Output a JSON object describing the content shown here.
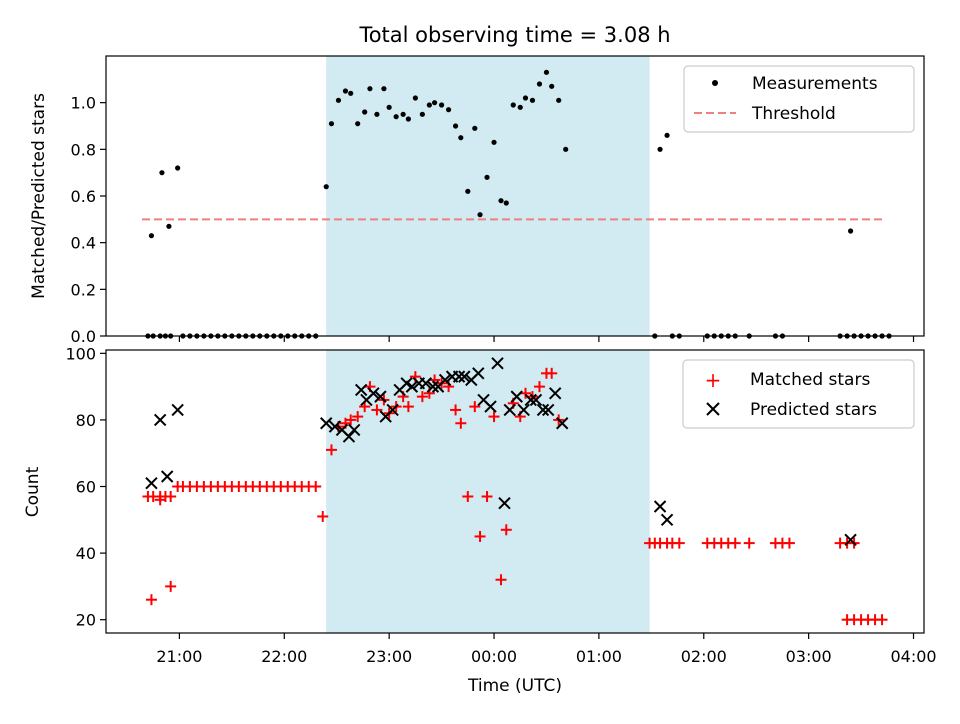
{
  "figure_title": "Total observing time = 3.08 h",
  "colors": {
    "shade": "#add8e6",
    "measurement": "#000000",
    "threshold": "#f08080",
    "matched": "#ff0000",
    "predicted": "#000000"
  },
  "chart_data": [
    {
      "type": "scatter",
      "title": "Total observing time = 3.08 h",
      "xlabel": "",
      "ylabel": "Matched/Predicted stars",
      "xlim": [
        "20:18",
        "04:06"
      ],
      "ylim": [
        0,
        1.2
      ],
      "yticks": [
        "0.0",
        "0.2",
        "0.4",
        "0.6",
        "0.8",
        "1.0"
      ],
      "shaded_interval": [
        "22:24",
        "01:29"
      ],
      "legend_position": "top-right",
      "legend": [
        "Measurements",
        "Threshold"
      ],
      "series": [
        {
          "name": "Measurements",
          "marker": "dot",
          "points": [
            [
              "20:42",
              0
            ],
            [
              "20:45",
              0
            ],
            [
              "20:49",
              0
            ],
            [
              "20:52",
              0
            ],
            [
              "20:55",
              0
            ],
            [
              "20:44",
              0.43
            ],
            [
              "20:50",
              0.7
            ],
            [
              "20:54",
              0.47
            ],
            [
              "20:59",
              0.72
            ],
            [
              "21:02",
              0
            ],
            [
              "21:06",
              0
            ],
            [
              "21:10",
              0
            ],
            [
              "21:14",
              0
            ],
            [
              "21:18",
              0
            ],
            [
              "21:22",
              0
            ],
            [
              "21:26",
              0
            ],
            [
              "21:30",
              0
            ],
            [
              "21:34",
              0
            ],
            [
              "21:38",
              0
            ],
            [
              "21:42",
              0
            ],
            [
              "21:46",
              0
            ],
            [
              "21:50",
              0
            ],
            [
              "21:54",
              0
            ],
            [
              "21:58",
              0
            ],
            [
              "22:02",
              0
            ],
            [
              "22:06",
              0
            ],
            [
              "22:10",
              0
            ],
            [
              "22:14",
              0
            ],
            [
              "22:18",
              0
            ],
            [
              "22:24",
              0.64
            ],
            [
              "22:27",
              0.91
            ],
            [
              "22:31",
              1.01
            ],
            [
              "22:35",
              1.05
            ],
            [
              "22:38",
              1.04
            ],
            [
              "22:42",
              0.91
            ],
            [
              "22:46",
              0.96
            ],
            [
              "22:49",
              1.06
            ],
            [
              "22:53",
              0.95
            ],
            [
              "22:57",
              1.06
            ],
            [
              "23:00",
              0.98
            ],
            [
              "23:04",
              0.94
            ],
            [
              "23:08",
              0.95
            ],
            [
              "23:11",
              0.93
            ],
            [
              "23:15",
              1.02
            ],
            [
              "23:19",
              0.95
            ],
            [
              "23:23",
              0.99
            ],
            [
              "23:26",
              1.0
            ],
            [
              "23:30",
              0.99
            ],
            [
              "23:34",
              0.97
            ],
            [
              "23:38",
              0.9
            ],
            [
              "23:41",
              0.85
            ],
            [
              "23:45",
              0.62
            ],
            [
              "23:49",
              0.89
            ],
            [
              "23:52",
              0.52
            ],
            [
              "23:56",
              0.68
            ],
            [
              "00:00",
              0.83
            ],
            [
              "00:04",
              0.58
            ],
            [
              "00:07",
              0.57
            ],
            [
              "00:11",
              0.99
            ],
            [
              "00:15",
              0.98
            ],
            [
              "00:18",
              1.02
            ],
            [
              "00:22",
              1.01
            ],
            [
              "00:26",
              1.08
            ],
            [
              "00:30",
              1.13
            ],
            [
              "00:33",
              1.07
            ],
            [
              "00:37",
              1.01
            ],
            [
              "00:41",
              0.8
            ],
            [
              "01:32",
              0
            ],
            [
              "01:42",
              0
            ],
            [
              "01:46",
              0
            ],
            [
              "02:02",
              0
            ],
            [
              "02:06",
              0
            ],
            [
              "02:10",
              0
            ],
            [
              "02:14",
              0
            ],
            [
              "02:18",
              0
            ],
            [
              "02:26",
              0
            ],
            [
              "02:41",
              0
            ],
            [
              "02:45",
              0
            ],
            [
              "03:18",
              0
            ],
            [
              "03:22",
              0
            ],
            [
              "03:26",
              0
            ],
            [
              "03:30",
              0
            ],
            [
              "03:34",
              0
            ],
            [
              "03:38",
              0
            ],
            [
              "03:42",
              0
            ],
            [
              "03:46",
              0
            ],
            [
              "01:35",
              0.8
            ],
            [
              "01:39",
              0.86
            ],
            [
              "03:24",
              0.45
            ]
          ]
        },
        {
          "name": "Threshold",
          "style": "dashed",
          "points": [
            [
              "20:42",
              0.5
            ],
            [
              "04:06",
              0.5
            ]
          ]
        }
      ]
    },
    {
      "type": "scatter",
      "title": "",
      "xlabel": "Time (UTC)",
      "ylabel": "Count",
      "xticks": [
        "21:00",
        "22:00",
        "23:00",
        "00:00",
        "01:00",
        "02:00",
        "03:00",
        "04:00"
      ],
      "yticks": [
        "20",
        "40",
        "60",
        "80",
        "100"
      ],
      "ylim": [
        16,
        101
      ],
      "shaded_interval": [
        "22:24",
        "01:29"
      ],
      "legend_position": "top-right",
      "legend": [
        "Matched stars",
        "Predicted stars"
      ],
      "series": [
        {
          "name": "Matched stars",
          "marker": "plus",
          "points": [
            [
              "20:42",
              57
            ],
            [
              "20:45",
              57
            ],
            [
              "20:49",
              57
            ],
            [
              "20:52",
              57
            ],
            [
              "20:55",
              57
            ],
            [
              "20:44",
              26
            ],
            [
              "20:49",
              56
            ],
            [
              "20:55",
              30
            ],
            [
              "20:59",
              60
            ],
            [
              "21:02",
              60
            ],
            [
              "21:06",
              60
            ],
            [
              "21:10",
              60
            ],
            [
              "21:14",
              60
            ],
            [
              "21:18",
              60
            ],
            [
              "21:22",
              60
            ],
            [
              "21:26",
              60
            ],
            [
              "21:30",
              60
            ],
            [
              "21:34",
              60
            ],
            [
              "21:38",
              60
            ],
            [
              "21:42",
              60
            ],
            [
              "21:46",
              60
            ],
            [
              "21:50",
              60
            ],
            [
              "21:54",
              60
            ],
            [
              "21:58",
              60
            ],
            [
              "22:02",
              60
            ],
            [
              "22:06",
              60
            ],
            [
              "22:10",
              60
            ],
            [
              "22:14",
              60
            ],
            [
              "22:18",
              60
            ],
            [
              "22:22",
              51
            ],
            [
              "22:27",
              71
            ],
            [
              "22:31",
              78
            ],
            [
              "22:35",
              79
            ],
            [
              "22:38",
              80
            ],
            [
              "22:42",
              81
            ],
            [
              "22:46",
              84
            ],
            [
              "22:49",
              90
            ],
            [
              "22:53",
              83
            ],
            [
              "22:57",
              86
            ],
            [
              "23:00",
              82
            ],
            [
              "23:04",
              84
            ],
            [
              "23:08",
              87
            ],
            [
              "23:11",
              84
            ],
            [
              "23:15",
              93
            ],
            [
              "23:19",
              87
            ],
            [
              "23:23",
              88
            ],
            [
              "23:26",
              92
            ],
            [
              "23:30",
              91
            ],
            [
              "23:34",
              90
            ],
            [
              "23:38",
              83
            ],
            [
              "23:41",
              79
            ],
            [
              "23:45",
              57
            ],
            [
              "23:49",
              84
            ],
            [
              "23:52",
              45
            ],
            [
              "23:56",
              57
            ],
            [
              "00:00",
              81
            ],
            [
              "00:04",
              32
            ],
            [
              "00:07",
              47
            ],
            [
              "00:11",
              85
            ],
            [
              "00:15",
              81
            ],
            [
              "00:18",
              88
            ],
            [
              "00:22",
              87
            ],
            [
              "00:26",
              90
            ],
            [
              "00:30",
              94
            ],
            [
              "00:33",
              94
            ],
            [
              "00:37",
              80
            ],
            [
              "01:29",
              43
            ],
            [
              "01:32",
              43
            ],
            [
              "01:35",
              43
            ],
            [
              "01:39",
              43
            ],
            [
              "01:42",
              43
            ],
            [
              "01:46",
              43
            ],
            [
              "02:02",
              43
            ],
            [
              "02:06",
              43
            ],
            [
              "02:10",
              43
            ],
            [
              "02:14",
              43
            ],
            [
              "02:18",
              43
            ],
            [
              "02:26",
              43
            ],
            [
              "02:41",
              43
            ],
            [
              "02:45",
              43
            ],
            [
              "02:49",
              43
            ],
            [
              "03:18",
              43
            ],
            [
              "03:22",
              43
            ],
            [
              "03:26",
              43
            ],
            [
              "03:22",
              20
            ],
            [
              "03:26",
              20
            ],
            [
              "03:30",
              20
            ],
            [
              "03:34",
              20
            ],
            [
              "03:38",
              20
            ],
            [
              "03:42",
              20
            ]
          ]
        },
        {
          "name": "Predicted stars",
          "marker": "x",
          "points": [
            [
              "20:44",
              61
            ],
            [
              "20:49",
              80
            ],
            [
              "20:53",
              63
            ],
            [
              "20:59",
              83
            ],
            [
              "22:24",
              79
            ],
            [
              "22:29",
              78
            ],
            [
              "22:33",
              77
            ],
            [
              "22:37",
              75
            ],
            [
              "22:40",
              77
            ],
            [
              "22:44",
              89
            ],
            [
              "22:47",
              86
            ],
            [
              "22:51",
              88
            ],
            [
              "22:55",
              87
            ],
            [
              "22:58",
              81
            ],
            [
              "23:02",
              83
            ],
            [
              "23:06",
              89
            ],
            [
              "23:10",
              91
            ],
            [
              "23:13",
              90
            ],
            [
              "23:17",
              91
            ],
            [
              "23:21",
              91
            ],
            [
              "23:25",
              90
            ],
            [
              "23:28",
              90
            ],
            [
              "23:32",
              92
            ],
            [
              "23:36",
              93
            ],
            [
              "23:40",
              93
            ],
            [
              "23:43",
              93
            ],
            [
              "23:47",
              92
            ],
            [
              "23:51",
              94
            ],
            [
              "23:54",
              86
            ],
            [
              "23:58",
              84
            ],
            [
              "00:02",
              97
            ],
            [
              "00:06",
              55
            ],
            [
              "00:09",
              83
            ],
            [
              "00:13",
              87
            ],
            [
              "00:17",
              83
            ],
            [
              "00:21",
              86
            ],
            [
              "00:24",
              86
            ],
            [
              "00:28",
              83
            ],
            [
              "00:31",
              83
            ],
            [
              "00:35",
              88
            ],
            [
              "00:39",
              79
            ],
            [
              "01:35",
              54
            ],
            [
              "01:39",
              50
            ],
            [
              "03:24",
              44
            ]
          ]
        }
      ]
    }
  ]
}
